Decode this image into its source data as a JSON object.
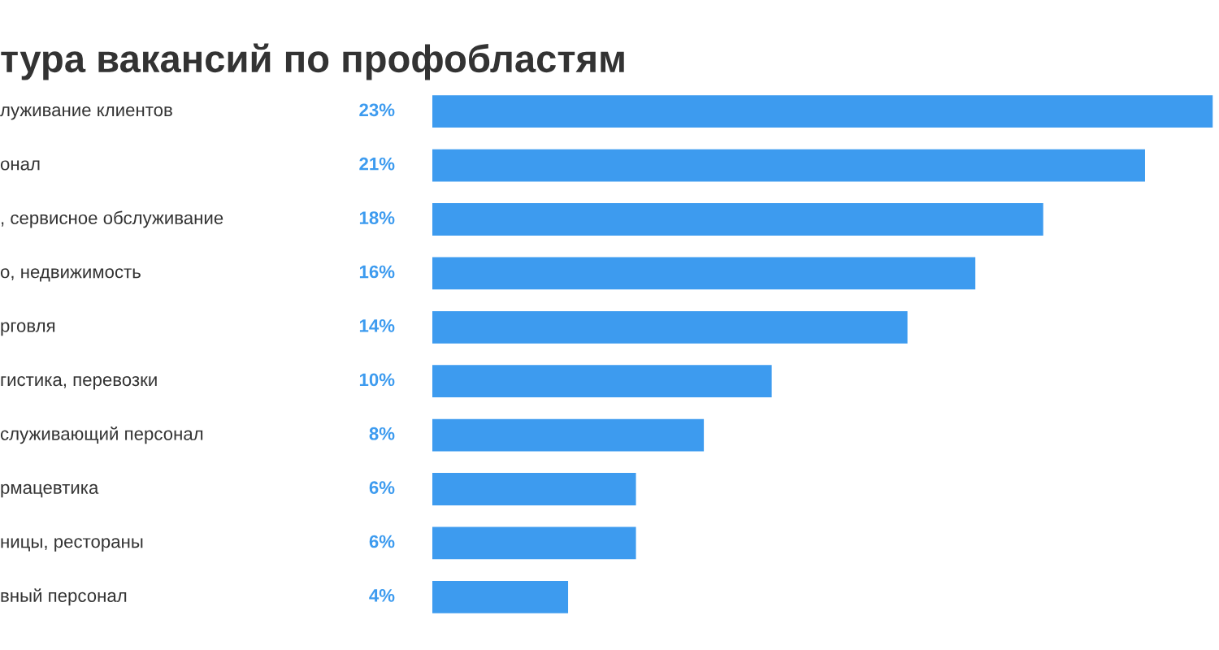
{
  "chart_data": {
    "type": "bar",
    "orientation": "horizontal",
    "title": "тура вакансий по профобластям",
    "categories": [
      "луживание клиентов",
      "онал",
      ", сервисное обслуживание",
      "о, недвижимость",
      "рговля",
      "гистика, перевозки",
      "служивающий персонал",
      "рмацевтика",
      "ницы, рестораны",
      "вный персонал"
    ],
    "values": [
      23,
      21,
      18,
      16,
      14,
      10,
      8,
      6,
      6,
      4
    ],
    "value_labels": [
      "23%",
      "21%",
      "18%",
      "16%",
      "14%",
      "10%",
      "8%",
      "6%",
      "6%",
      "4%"
    ],
    "color": "#3d9bef"
  }
}
